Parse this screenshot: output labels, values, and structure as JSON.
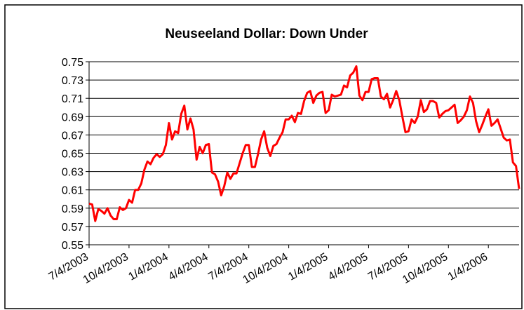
{
  "chart_data": {
    "type": "line",
    "title": "Neuseeland Dollar: Down Under",
    "categories": [
      "7/4/2003",
      null,
      null,
      null,
      null,
      null,
      null,
      null,
      null,
      null,
      null,
      null,
      null,
      "10/4/2003",
      null,
      null,
      null,
      null,
      null,
      null,
      null,
      null,
      null,
      null,
      null,
      null,
      "1/4/2004",
      null,
      null,
      null,
      null,
      null,
      null,
      null,
      null,
      null,
      null,
      null,
      null,
      "4/4/2004",
      null,
      null,
      null,
      null,
      null,
      null,
      null,
      null,
      null,
      null,
      null,
      null,
      "7/4/2004",
      null,
      null,
      null,
      null,
      null,
      null,
      null,
      null,
      null,
      null,
      null,
      null,
      "10/4/2004",
      null,
      null,
      null,
      null,
      null,
      null,
      null,
      null,
      null,
      null,
      null,
      null,
      "1/4/2005",
      null,
      null,
      null,
      null,
      null,
      null,
      null,
      null,
      null,
      null,
      null,
      null,
      "4/4/2005",
      null,
      null,
      null,
      null,
      null,
      null,
      null,
      null,
      null,
      null,
      null,
      null,
      "7/4/2005",
      null,
      null,
      null,
      null,
      null,
      null,
      null,
      null,
      null,
      null,
      null,
      null,
      "10/4/2005",
      null,
      null,
      null,
      null,
      null,
      null,
      null,
      null,
      null,
      null,
      null,
      null,
      "1/4/2006",
      null,
      null,
      null,
      null,
      null,
      null,
      null,
      null,
      null,
      null
    ],
    "series": [
      {
        "color": "#ff0000",
        "values": [
          0.595,
          0.594,
          0.576,
          0.589,
          0.587,
          0.584,
          0.59,
          0.582,
          0.578,
          0.578,
          0.591,
          0.588,
          0.59,
          0.599,
          0.596,
          0.61,
          0.61,
          0.617,
          0.632,
          0.641,
          0.638,
          0.645,
          0.649,
          0.646,
          0.649,
          0.659,
          0.683,
          0.665,
          0.674,
          0.672,
          0.693,
          0.702,
          0.676,
          0.688,
          0.676,
          0.643,
          0.657,
          0.65,
          0.659,
          0.66,
          0.629,
          0.627,
          0.619,
          0.604,
          0.614,
          0.629,
          0.622,
          0.628,
          0.628,
          0.639,
          0.65,
          0.659,
          0.659,
          0.635,
          0.635,
          0.649,
          0.665,
          0.674,
          0.656,
          0.647,
          0.658,
          0.66,
          0.667,
          0.673,
          0.687,
          0.687,
          0.691,
          0.684,
          0.694,
          0.693,
          0.707,
          0.716,
          0.718,
          0.705,
          0.713,
          0.716,
          0.717,
          0.694,
          0.697,
          0.714,
          0.712,
          0.713,
          0.714,
          0.724,
          0.722,
          0.735,
          0.738,
          0.745,
          0.713,
          0.708,
          0.717,
          0.717,
          0.731,
          0.732,
          0.732,
          0.712,
          0.709,
          0.715,
          0.7,
          0.708,
          0.718,
          0.708,
          0.69,
          0.673,
          0.674,
          0.687,
          0.683,
          0.69,
          0.708,
          0.695,
          0.698,
          0.707,
          0.707,
          0.705,
          0.689,
          0.693,
          0.696,
          0.697,
          0.7,
          0.703,
          0.683,
          0.686,
          0.69,
          0.697,
          0.712,
          0.705,
          0.685,
          0.673,
          0.681,
          0.69,
          0.698,
          0.68,
          0.683,
          0.687,
          0.677,
          0.667,
          0.664,
          0.665,
          0.64,
          0.636,
          0.611
        ]
      }
    ],
    "ylim": [
      0.55,
      0.75
    ],
    "yticks": [
      0.55,
      0.57,
      0.59,
      0.61,
      0.63,
      0.65,
      0.67,
      0.69,
      0.71,
      0.73,
      0.75
    ],
    "grid": true
  }
}
